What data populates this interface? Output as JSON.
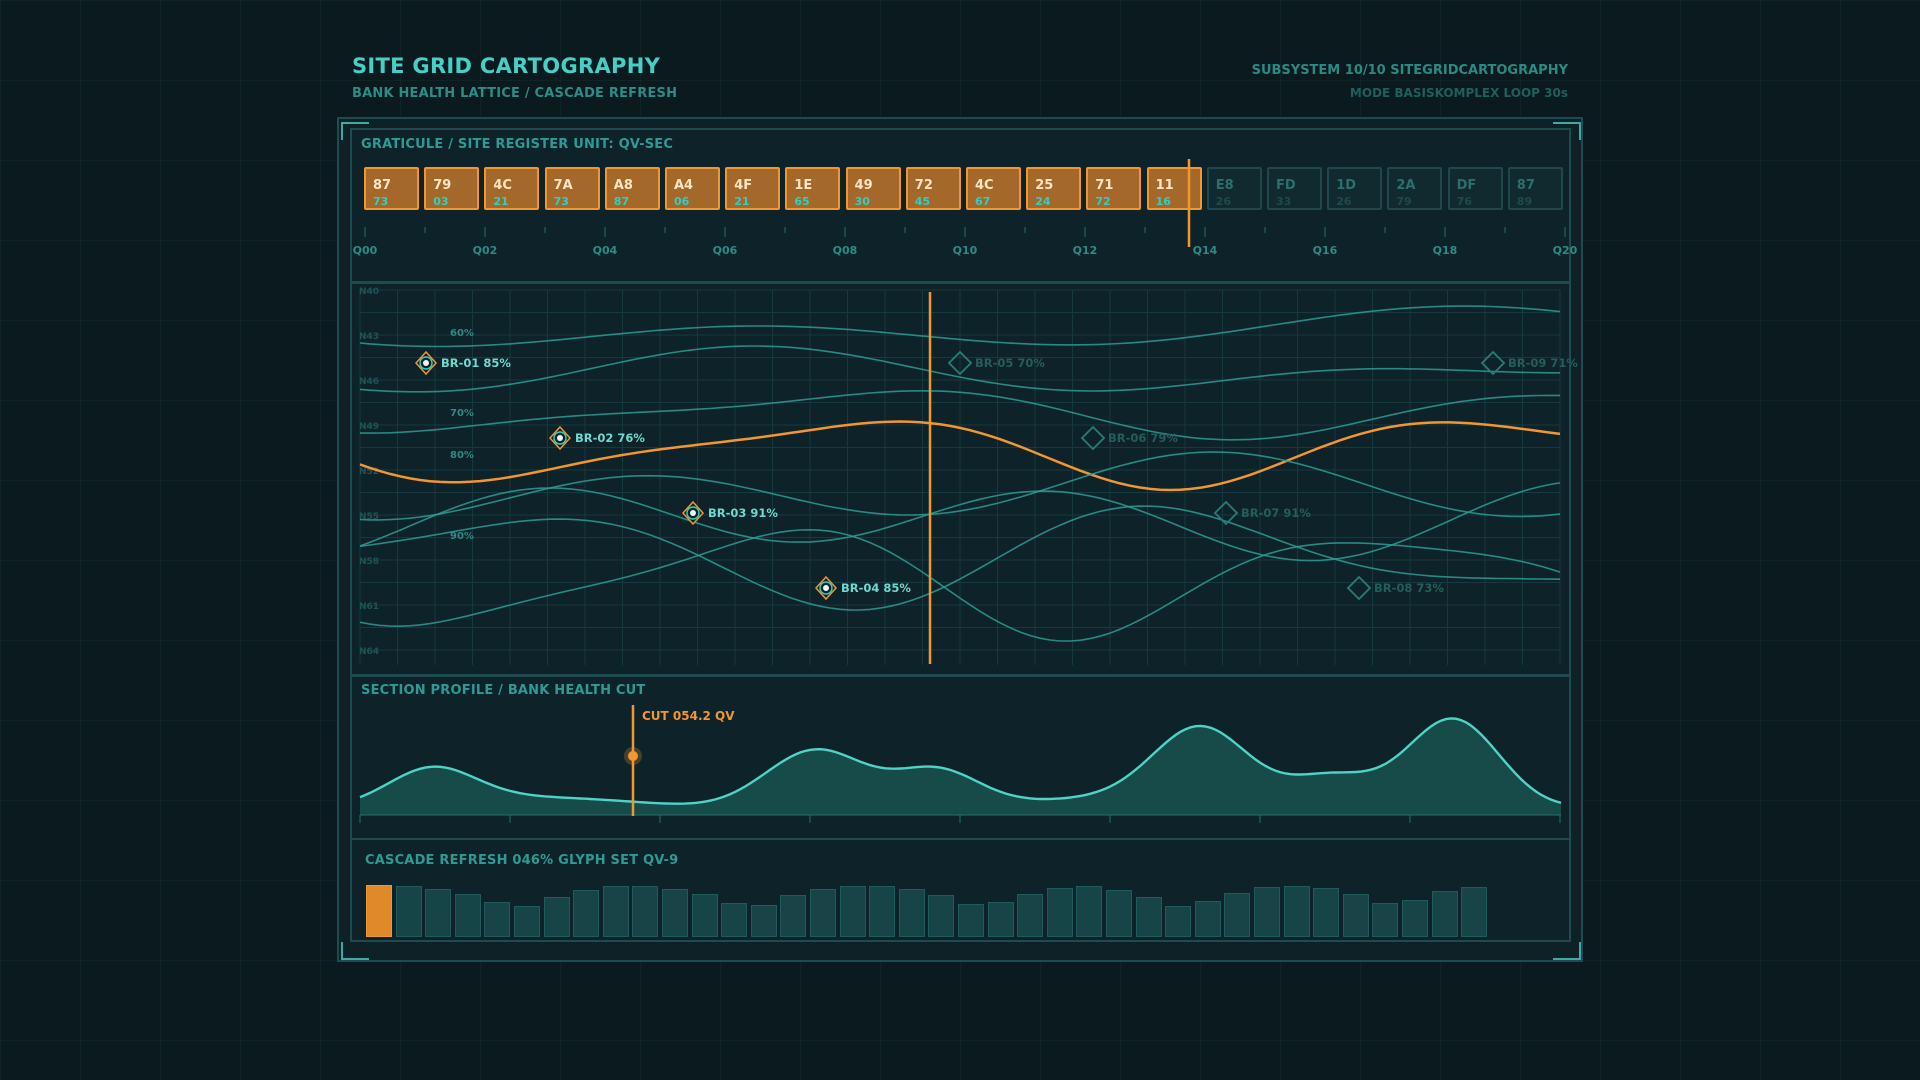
{
  "header": {
    "title": "SITE GRID CARTOGRAPHY",
    "subtitle": "BANK HEALTH LATTICE / CASCADE REFRESH",
    "subsystem": "SUBSYSTEM 10/10  SITEGRIDCARTOGRAPHY",
    "mode": "MODE BASISKOMPLEX  LOOP 30s"
  },
  "graticule": {
    "label": "GRATICULE / SITE REGISTER  UNIT: QV-SEC",
    "cells": [
      {
        "top": "87",
        "bottom": "73",
        "active": true
      },
      {
        "top": "79",
        "bottom": "03",
        "active": true
      },
      {
        "top": "4C",
        "bottom": "21",
        "active": true
      },
      {
        "top": "7A",
        "bottom": "73",
        "active": true
      },
      {
        "top": "A8",
        "bottom": "87",
        "active": true
      },
      {
        "top": "A4",
        "bottom": "06",
        "active": true
      },
      {
        "top": "4F",
        "bottom": "21",
        "active": true
      },
      {
        "top": "1E",
        "bottom": "65",
        "active": true
      },
      {
        "top": "49",
        "bottom": "30",
        "active": true
      },
      {
        "top": "72",
        "bottom": "45",
        "active": true
      },
      {
        "top": "4C",
        "bottom": "67",
        "active": true
      },
      {
        "top": "25",
        "bottom": "24",
        "active": true
      },
      {
        "top": "71",
        "bottom": "72",
        "active": true
      },
      {
        "top": "11",
        "bottom": "16",
        "active": true
      },
      {
        "top": "E8",
        "bottom": "26",
        "active": false
      },
      {
        "top": "FD",
        "bottom": "33",
        "active": false
      },
      {
        "top": "1D",
        "bottom": "26",
        "active": false
      },
      {
        "top": "2A",
        "bottom": "79",
        "active": false
      },
      {
        "top": "DF",
        "bottom": "76",
        "active": false
      },
      {
        "top": "87",
        "bottom": "89",
        "active": false
      }
    ],
    "scale_labels": [
      "Q00",
      "Q02",
      "Q04",
      "Q06",
      "Q08",
      "Q10",
      "Q12",
      "Q14",
      "Q16",
      "Q18",
      "Q20"
    ]
  },
  "lattice": {
    "row_labels": [
      "N40",
      "N43",
      "N46",
      "N49",
      "N52",
      "N55",
      "N58",
      "N61",
      "N64"
    ],
    "contour_labels": [
      "60%",
      "70%",
      "80%",
      "90%"
    ],
    "banks": [
      {
        "label": "BR-01 85%",
        "active": true
      },
      {
        "label": "BR-02 76%",
        "active": true
      },
      {
        "label": "BR-03 91%",
        "active": true
      },
      {
        "label": "BR-04 85%",
        "active": true
      },
      {
        "label": "BR-05 70%",
        "active": false
      },
      {
        "label": "BR-06 79%",
        "active": false
      },
      {
        "label": "BR-07 91%",
        "active": false
      },
      {
        "label": "BR-08 73%",
        "active": false
      },
      {
        "label": "BR-09 71%",
        "active": false
      }
    ]
  },
  "section": {
    "label": "SECTION PROFILE / BANK HEALTH CUT",
    "cut_label": "CUT 054.2 QV"
  },
  "cascade": {
    "label": "CASCADE REFRESH 046%  GLYPH SET QV-9",
    "progress_percent": 46,
    "bar_levels": [
      1.0,
      0.98,
      0.93,
      0.82,
      0.68,
      0.6,
      0.76,
      0.9,
      0.98,
      0.99,
      0.93,
      0.83,
      0.66,
      0.62,
      0.8,
      0.92,
      0.99,
      0.98,
      0.92,
      0.8,
      0.63,
      0.67,
      0.82,
      0.95,
      0.99,
      0.91,
      0.76,
      0.6,
      0.69,
      0.85,
      0.97,
      0.99,
      0.95,
      0.83,
      0.66,
      0.71,
      0.88,
      0.97
    ]
  },
  "colors": {
    "accent": "#f2962f",
    "teal": "#3fb9b0",
    "background": "#0b1a1e"
  }
}
